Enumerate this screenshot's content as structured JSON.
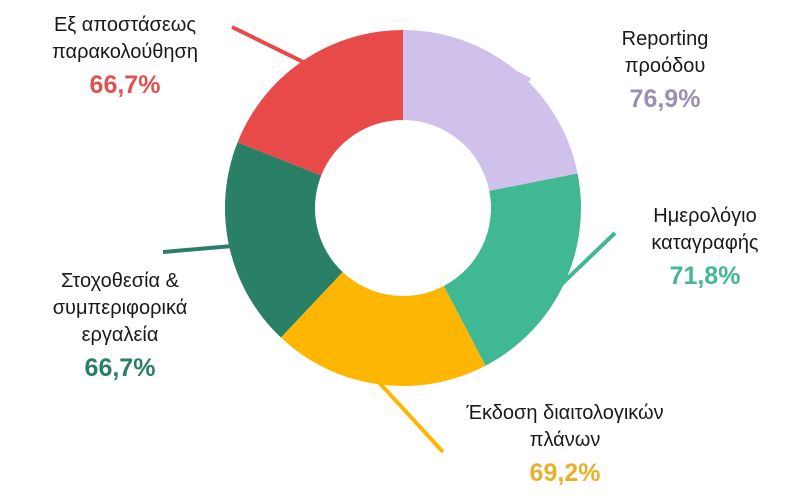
{
  "chart_data": {
    "type": "pie",
    "subtype": "donut",
    "title": "",
    "legend": "none (callout labels with leader lines)",
    "categories": [
      "Reporting προόδου",
      "Ημερολόγιο καταγραφής",
      "Έκδοση διαιτολογικών πλάνων",
      "Στοχοθεσία & συμπεριφορικά εργαλεία",
      "Εξ αποστάσεως παρακολούθηση"
    ],
    "values": [
      76.9,
      71.8,
      69.2,
      66.7,
      66.7
    ],
    "value_labels": [
      "76,9%",
      "71,8%",
      "69,2%",
      "66,7%",
      "66,7%"
    ],
    "colors": [
      "#d0c0ec",
      "#40b893",
      "#fdb601",
      "#2a7f67",
      "#e84a4a"
    ],
    "label_colors": [
      "#9b8fb5",
      "#40b893",
      "#e8b12a",
      "#2a7f67",
      "#e05252"
    ],
    "start_angle_deg": 0,
    "direction": "clockwise"
  },
  "labels": [
    {
      "name": "Reporting\nπροόδου",
      "pct": "76,9%"
    },
    {
      "name": "Ημερολόγιο\nκαταγραφής",
      "pct": "71,8%"
    },
    {
      "name": "Έκδοση διαιτολογικών\nπλάνων",
      "pct": "69,2%"
    },
    {
      "name": "Στοχοθεσία &\nσυμπεριφορικά\nεργαλεία",
      "pct": "66,7%"
    },
    {
      "name": "Εξ αποστάσεως\nπαρακολούθηση",
      "pct": "66,7%"
    }
  ]
}
